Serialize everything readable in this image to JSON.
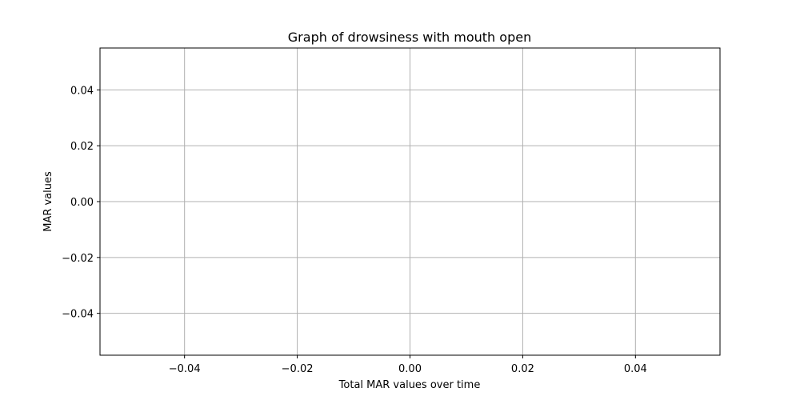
{
  "chart_data": {
    "type": "line",
    "title": "Graph of drowsiness with mouth open",
    "xlabel": "Total MAR values over time",
    "ylabel": "MAR values",
    "xlim": [
      -0.055,
      0.055
    ],
    "ylim": [
      -0.055,
      0.055
    ],
    "x_ticks": [
      -0.04,
      -0.02,
      0.0,
      0.02,
      0.04
    ],
    "x_tick_labels": [
      "−0.04",
      "−0.02",
      "0.00",
      "0.02",
      "0.04"
    ],
    "y_ticks": [
      -0.04,
      -0.02,
      0.0,
      0.02,
      0.04
    ],
    "y_tick_labels": [
      "−0.04",
      "−0.02",
      "0.00",
      "0.02",
      "0.04"
    ],
    "grid": true,
    "series": [
      {
        "x": [],
        "y": []
      }
    ],
    "colors": {
      "grid": "#b0b0b0",
      "frame": "#000000",
      "series": "#1f77b4"
    }
  }
}
